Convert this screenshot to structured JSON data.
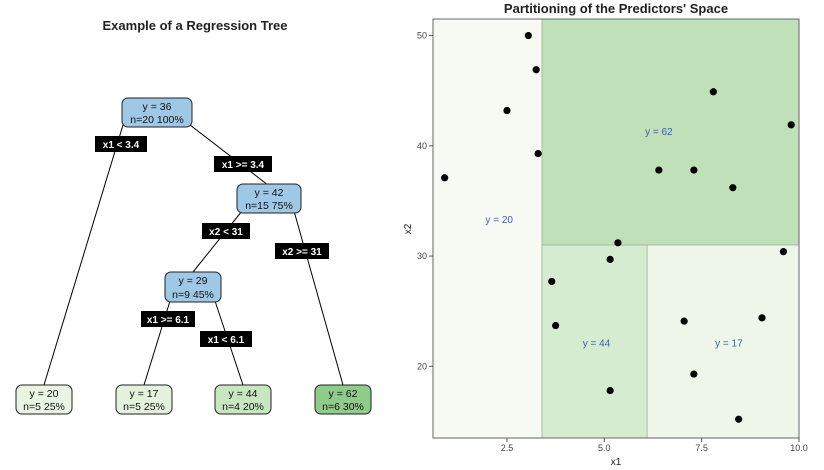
{
  "tree": {
    "title": "Example of a Regression Tree",
    "nodes": [
      {
        "id": "root",
        "line1": "y = 36",
        "line2": "n=20  100%",
        "fill": "#9ec8e6"
      },
      {
        "id": "n2",
        "line1": "y = 42",
        "line2": "n=15  75%",
        "fill": "#9ec8e6"
      },
      {
        "id": "n3",
        "line1": "y = 29",
        "line2": "n=9  45%",
        "fill": "#9ec8e6"
      },
      {
        "id": "leaf1",
        "line1": "y = 20",
        "line2": "n=5  25%",
        "fill": "#e9f4e3"
      },
      {
        "id": "leaf2",
        "line1": "y = 17",
        "line2": "n=5  25%",
        "fill": "#e4f2dd"
      },
      {
        "id": "leaf3",
        "line1": "y = 44",
        "line2": "n=4  20%",
        "fill": "#c8e6c0"
      },
      {
        "id": "leaf4",
        "line1": "y = 62",
        "line2": "n=6  30%",
        "fill": "#8fcb8a"
      }
    ],
    "splits": [
      "x1 < 3.4",
      "x1 >= 3.4",
      "x2 < 31",
      "x2 >= 31",
      "x1 >= 6.1",
      "x1 < 6.1"
    ]
  },
  "chart_data": {
    "type": "scatter",
    "title": "Partitioning of the Predictors' Space",
    "xlabel": "x1",
    "ylabel": "x2",
    "xlim": [
      0.6,
      10.0
    ],
    "ylim": [
      13.5,
      51.5
    ],
    "xticks": [
      2.5,
      5.0,
      7.5,
      10.0
    ],
    "xtick_labels": [
      "2.5",
      "5.0",
      "7.5",
      "10.0"
    ],
    "yticks": [
      20,
      30,
      40,
      50
    ],
    "ytick_labels": [
      "20",
      "30",
      "40",
      "50"
    ],
    "regions": [
      {
        "label": "y = 20",
        "x": [
          0.6,
          3.4
        ],
        "y": [
          13.5,
          51.5
        ],
        "fill": "#f7faf3",
        "label_at": [
          2.3,
          33
        ]
      },
      {
        "label": "y = 62",
        "x": [
          3.4,
          10.0
        ],
        "y": [
          31,
          51.5
        ],
        "fill": "#bfe0b8",
        "label_at": [
          6.4,
          41
        ]
      },
      {
        "label": "y = 44",
        "x": [
          3.4,
          6.1
        ],
        "y": [
          13.5,
          31
        ],
        "fill": "#d6ecd0",
        "label_at": [
          4.8,
          21.8
        ]
      },
      {
        "label": "y = 17",
        "x": [
          6.1,
          10.0
        ],
        "y": [
          13.5,
          31
        ],
        "fill": "#eef6ea",
        "label_at": [
          8.2,
          21.8
        ]
      }
    ],
    "points": [
      {
        "x": 0.9,
        "y": 37.1
      },
      {
        "x": 2.5,
        "y": 43.2
      },
      {
        "x": 3.05,
        "y": 50.0
      },
      {
        "x": 3.25,
        "y": 46.9
      },
      {
        "x": 3.3,
        "y": 39.3
      },
      {
        "x": 3.65,
        "y": 27.7
      },
      {
        "x": 3.75,
        "y": 23.7
      },
      {
        "x": 5.15,
        "y": 29.7
      },
      {
        "x": 5.35,
        "y": 31.2
      },
      {
        "x": 5.15,
        "y": 17.8
      },
      {
        "x": 6.4,
        "y": 37.8
      },
      {
        "x": 7.05,
        "y": 24.1
      },
      {
        "x": 7.3,
        "y": 37.8
      },
      {
        "x": 7.3,
        "y": 19.3
      },
      {
        "x": 7.8,
        "y": 44.9
      },
      {
        "x": 8.3,
        "y": 36.2
      },
      {
        "x": 8.45,
        "y": 15.2
      },
      {
        "x": 9.05,
        "y": 24.4
      },
      {
        "x": 9.6,
        "y": 30.4
      },
      {
        "x": 9.8,
        "y": 41.9
      }
    ]
  }
}
